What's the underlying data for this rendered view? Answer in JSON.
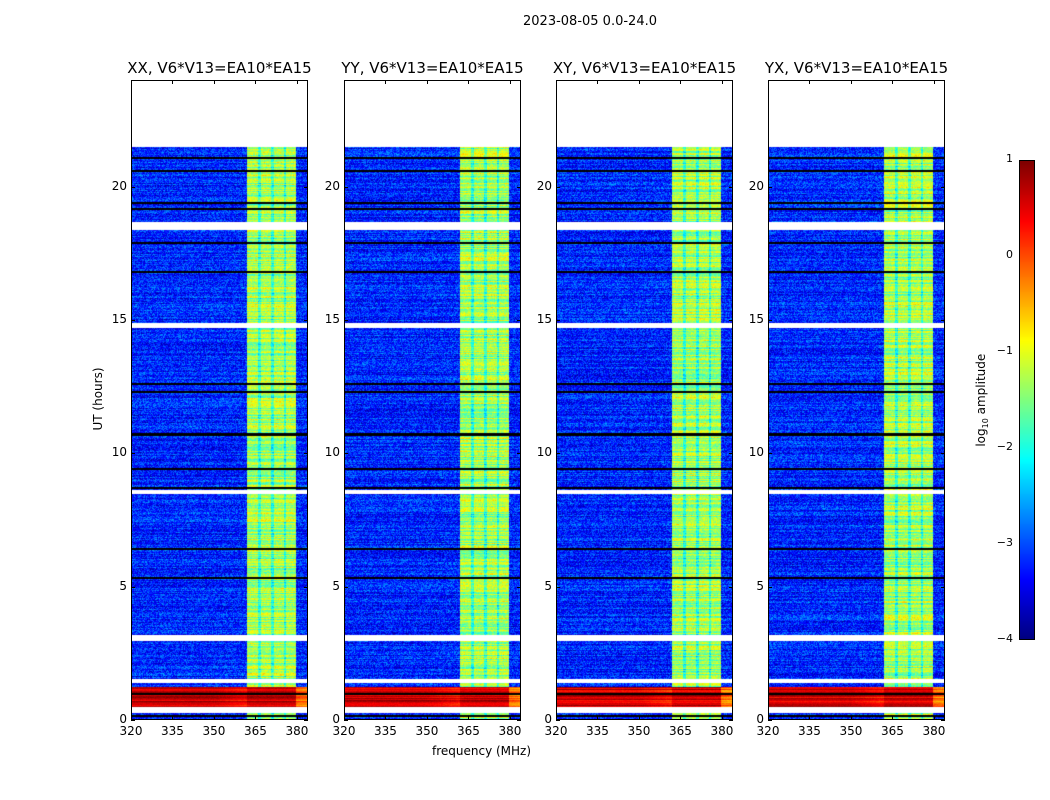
{
  "chart_data": {
    "type": "heatmap",
    "title": "2023-08-05 0.0-24.0",
    "panels": [
      {
        "title": "XX, V6*V13=EA10*EA15"
      },
      {
        "title": "YY, V6*V13=EA10*EA15"
      },
      {
        "title": "XY, V6*V13=EA10*EA15"
      },
      {
        "title": "YX, V6*V13=EA10*EA15"
      }
    ],
    "xlabel": "frequency (MHz)",
    "ylabel": "UT (hours)",
    "xlim": [
      320,
      384
    ],
    "ylim": [
      0,
      24
    ],
    "xticks": [
      "320",
      "335",
      "350",
      "365",
      "380"
    ],
    "xtick_values": [
      320,
      335,
      350,
      365,
      380
    ],
    "yticks": [
      "0",
      "5",
      "10",
      "15",
      "20"
    ],
    "ytick_values": [
      0,
      5,
      10,
      15,
      20
    ],
    "data_end_hours": 21.5,
    "colormap": "jet",
    "colorbar": {
      "label_prefix": "log",
      "label_sub": "10",
      "label_suffix": " amplitude",
      "ticks": [
        "1",
        "0",
        "−1",
        "−2",
        "−3",
        "−4"
      ],
      "tick_values": [
        1,
        0,
        -1,
        -2,
        -3,
        -4
      ],
      "range": [
        -4,
        1
      ]
    },
    "background_level_log10": -3.2,
    "rfi_band_mhz": [
      362,
      380
    ],
    "rfi_band_level_log10": -1.3,
    "strong_interval_hours": [
      0.4,
      1.2
    ],
    "strong_level_log10": 0.6,
    "flagged_intervals_hours": [
      [
        0.22,
        0.45
      ],
      [
        1.35,
        1.5
      ],
      [
        2.95,
        3.15
      ],
      [
        8.45,
        8.6
      ],
      [
        14.7,
        14.9
      ],
      [
        18.4,
        18.7
      ]
    ],
    "dropout_lines_hours": [
      0.1,
      0.95,
      5.3,
      6.4,
      8.7,
      9.4,
      10.7,
      12.3,
      12.6,
      16.8,
      17.9,
      19.2,
      19.4,
      20.6,
      21.1
    ]
  }
}
